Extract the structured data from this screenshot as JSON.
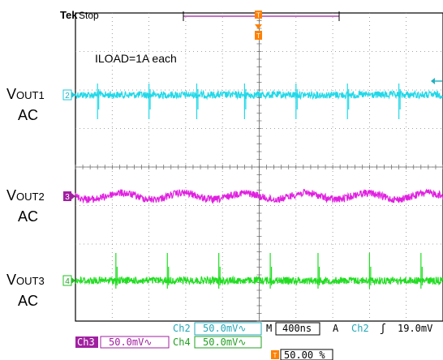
{
  "header": {
    "brand": "Tek",
    "mode": "Stop",
    "trigger_marker": "T"
  },
  "annotation": "ILOAD=1A each",
  "channels": [
    {
      "label_main": "V",
      "label_sub": "OUT1",
      "label_line2": "AC",
      "marker": "2",
      "color": "#22d8e8"
    },
    {
      "label_main": "V",
      "label_sub": "OUT2",
      "label_line2": "AC",
      "marker": "3",
      "color": "#e020e0"
    },
    {
      "label_main": "V",
      "label_sub": "OUT3",
      "label_line2": "AC",
      "marker": "4",
      "color": "#22dd22"
    }
  ],
  "readouts": {
    "ch2_name": "Ch2",
    "ch2_scale": "50.0mV∿",
    "timebase_prefix": "M",
    "timebase": "400ns",
    "trigger_prefix": "A",
    "trigger_source": "Ch2",
    "trigger_slope": "ʃ",
    "trigger_level": "19.0mV",
    "ch3_name": "Ch3",
    "ch3_scale": "50.0mV∿",
    "ch4_name": "Ch4",
    "ch4_scale": "50.0mV∿",
    "trigger_position": "50.00 %"
  },
  "chart_data": {
    "type": "line",
    "grid": true,
    "x_divisions": 10,
    "y_divisions": 8,
    "series": [
      {
        "name": "VOUT1 AC",
        "color": "#22d8e8",
        "spikes_at_div": [
          0.6,
          2.0,
          3.3,
          4.6,
          6.0,
          7.4,
          8.8
        ]
      },
      {
        "name": "VOUT2 AC",
        "color": "#e020e0",
        "ripple_periods": 6
      },
      {
        "name": "VOUT3 AC",
        "color": "#22dd22",
        "spikes_at_div": [
          1.1,
          2.5,
          3.9,
          5.3,
          6.6,
          8.0,
          9.4
        ]
      }
    ]
  }
}
